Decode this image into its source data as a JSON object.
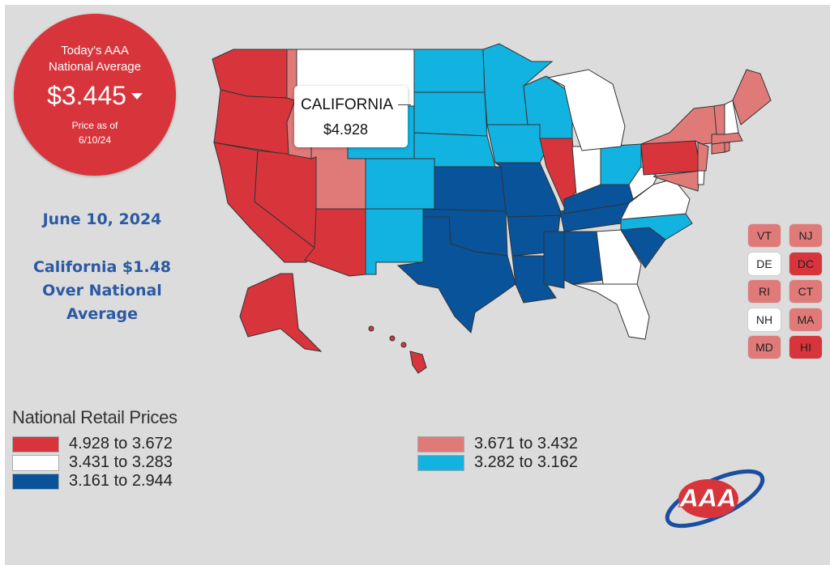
{
  "badge": {
    "line1": "Today's AAA",
    "line2": "National Average",
    "price": "$3.445",
    "price_as_of": "Price as of",
    "date": "6/10/24"
  },
  "notes": {
    "date": "June 10, 2024",
    "line1": "California $1.48",
    "line2": "Over National",
    "line3": "Average"
  },
  "tooltip": {
    "state": "CALIFORNIA",
    "value": "$4.928"
  },
  "colors": {
    "red": "#d7353b",
    "pink": "#e07a78",
    "white": "#ffffff",
    "cyan": "#12b3e0",
    "blue": "#08539a"
  },
  "small_states": [
    {
      "abbr": "VT",
      "tier": "pink"
    },
    {
      "abbr": "NJ",
      "tier": "pink"
    },
    {
      "abbr": "DE",
      "tier": "white"
    },
    {
      "abbr": "DC",
      "tier": "red"
    },
    {
      "abbr": "RI",
      "tier": "pink"
    },
    {
      "abbr": "CT",
      "tier": "pink"
    },
    {
      "abbr": "NH",
      "tier": "white"
    },
    {
      "abbr": "MA",
      "tier": "pink"
    },
    {
      "abbr": "MD",
      "tier": "pink"
    },
    {
      "abbr": "HI",
      "tier": "red"
    }
  ],
  "state_tiers": {
    "WA": "red",
    "OR": "red",
    "CA": "red",
    "NV": "red",
    "AZ": "red",
    "IL": "red",
    "PA": "red",
    "AK": "red",
    "HI": "red",
    "DC": "red",
    "ID": "pink",
    "UT": "pink",
    "NY": "pink",
    "ME": "pink",
    "VT": "pink",
    "NJ": "pink",
    "MA": "pink",
    "CT": "pink",
    "RI": "pink",
    "MD": "pink",
    "MT": "white",
    "MI": "white",
    "IN": "white",
    "WV": "white",
    "VA": "white",
    "GA": "white",
    "FL": "white",
    "NH": "white",
    "DE": "white",
    "WY": "cyan",
    "CO": "cyan",
    "NM": "cyan",
    "ND": "cyan",
    "SD": "cyan",
    "NE": "cyan",
    "MN": "cyan",
    "IA": "cyan",
    "WI": "cyan",
    "OH": "cyan",
    "NC": "cyan",
    "KS": "blue",
    "OK": "blue",
    "TX": "blue",
    "MO": "blue",
    "AR": "blue",
    "LA": "blue",
    "MS": "blue",
    "AL": "blue",
    "TN": "blue",
    "KY": "blue",
    "SC": "blue"
  },
  "legend": {
    "title": "National Retail Prices",
    "items": [
      {
        "label": "4.928 to 3.672",
        "tier": "red"
      },
      {
        "label": "3.431 to 3.283",
        "tier": "white"
      },
      {
        "label": "3.161 to 2.944",
        "tier": "blue"
      },
      {
        "label": "3.671 to 3.432",
        "tier": "pink"
      },
      {
        "label": "3.282 to 3.162",
        "tier": "cyan"
      }
    ]
  },
  "logo": {
    "text": "AAA"
  }
}
